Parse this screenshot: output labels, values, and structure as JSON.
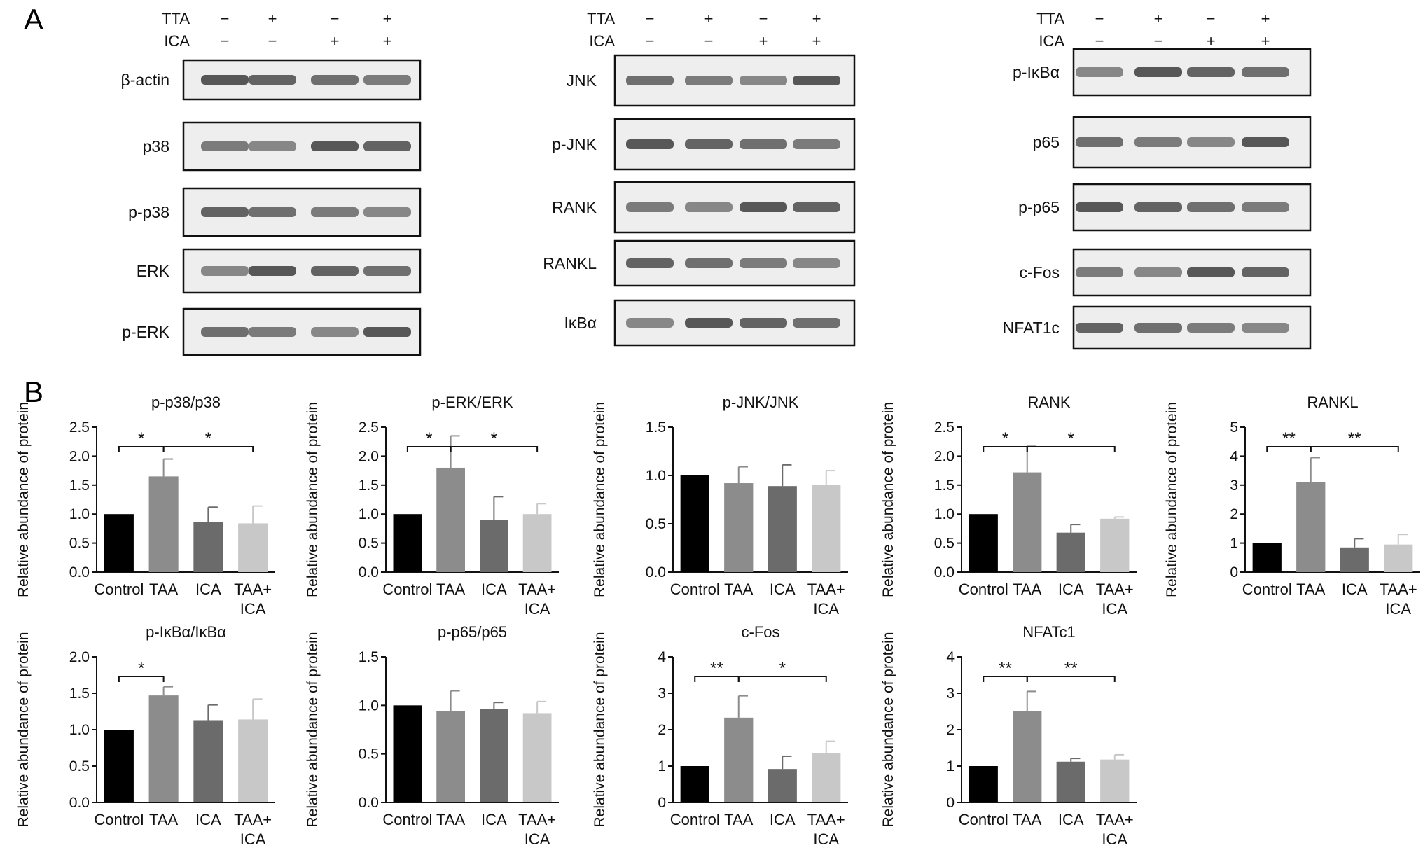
{
  "panel_labels": {
    "a": "A",
    "b": "B"
  },
  "western_blot": {
    "treatment_labels": [
      "TTA",
      "ICA"
    ],
    "lanes": [
      {
        "TTA": "−",
        "ICA": "−"
      },
      {
        "TTA": "+",
        "ICA": "−"
      },
      {
        "TTA": "−",
        "ICA": "+"
      },
      {
        "TTA": "+",
        "ICA": "+"
      }
    ],
    "columns": [
      {
        "blots": [
          "β-actin",
          "p38",
          "p-p38",
          "ERK",
          "p-ERK"
        ]
      },
      {
        "blots": [
          "JNK",
          "p-JNK",
          "RANK",
          "RANKL",
          "IκBα"
        ]
      },
      {
        "blots": [
          "p-IκBα",
          "p65",
          "p-p65",
          "c-Fos",
          "NFAT1c"
        ]
      }
    ]
  },
  "chart_data": [
    {
      "type": "bar",
      "title": "p-p38/p38",
      "ylabel": "Relative abundance of protein",
      "categories": [
        "Control",
        "TAA",
        "ICA",
        "TAA+ ICA"
      ],
      "values": [
        1.0,
        1.65,
        0.86,
        0.84
      ],
      "errors": [
        0,
        0.3,
        0.26,
        0.3
      ],
      "ylim": [
        0,
        2.5
      ],
      "yticks": [
        "0.0",
        "0.5",
        "1.0",
        "1.5",
        "2.0",
        "2.5"
      ],
      "colors": [
        "#000000",
        "#8c8c8c",
        "#6b6b6b",
        "#c8c8c8"
      ],
      "significance": [
        {
          "from": 0,
          "to": 1,
          "label": "*"
        },
        {
          "from": 1,
          "to": 3,
          "label": "*"
        }
      ]
    },
    {
      "type": "bar",
      "title": "p-ERK/ERK",
      "ylabel": "Relative abundance of protein",
      "categories": [
        "Control",
        "TAA",
        "ICA",
        "TAA+ ICA"
      ],
      "values": [
        1.0,
        1.8,
        0.9,
        1.0
      ],
      "errors": [
        0,
        0.55,
        0.4,
        0.18
      ],
      "ylim": [
        0,
        2.5
      ],
      "yticks": [
        "0.0",
        "0.5",
        "1.0",
        "1.5",
        "2.0",
        "2.5"
      ],
      "colors": [
        "#000000",
        "#8c8c8c",
        "#6b6b6b",
        "#c8c8c8"
      ],
      "significance": [
        {
          "from": 0,
          "to": 1,
          "label": "*"
        },
        {
          "from": 1,
          "to": 3,
          "label": "*"
        }
      ]
    },
    {
      "type": "bar",
      "title": "p-JNK/JNK",
      "ylabel": "Relative abundance of protein",
      "categories": [
        "Control",
        "TAA",
        "ICA",
        "TAA+ ICA"
      ],
      "values": [
        1.0,
        0.92,
        0.89,
        0.9
      ],
      "errors": [
        0,
        0.17,
        0.22,
        0.15
      ],
      "ylim": [
        0,
        1.5
      ],
      "yticks": [
        "0.0",
        "0.5",
        "1.0",
        "1.5"
      ],
      "colors": [
        "#000000",
        "#8c8c8c",
        "#6b6b6b",
        "#c8c8c8"
      ],
      "significance": []
    },
    {
      "type": "bar",
      "title": "RANK",
      "ylabel": "Relative abundance of protein",
      "categories": [
        "Control",
        "TAA",
        "ICA",
        "TAA+ ICA"
      ],
      "values": [
        1.0,
        1.72,
        0.68,
        0.92
      ],
      "errors": [
        0,
        0.45,
        0.14,
        0.03
      ],
      "ylim": [
        0,
        2.5
      ],
      "yticks": [
        "0.0",
        "0.5",
        "1.0",
        "1.5",
        "2.0",
        "2.5"
      ],
      "colors": [
        "#000000",
        "#8c8c8c",
        "#6b6b6b",
        "#c8c8c8"
      ],
      "significance": [
        {
          "from": 0,
          "to": 1,
          "label": "*"
        },
        {
          "from": 1,
          "to": 3,
          "label": "*"
        }
      ]
    },
    {
      "type": "bar",
      "title": "RANKL",
      "ylabel": "Relative abundance of protein",
      "categories": [
        "Control",
        "TAA",
        "ICA",
        "TAA+ ICA"
      ],
      "values": [
        1.0,
        3.1,
        0.85,
        0.95
      ],
      "errors": [
        0,
        0.85,
        0.3,
        0.35
      ],
      "ylim": [
        0,
        5
      ],
      "yticks": [
        "0",
        "1",
        "2",
        "3",
        "4",
        "5"
      ],
      "colors": [
        "#000000",
        "#8c8c8c",
        "#6b6b6b",
        "#c8c8c8"
      ],
      "significance": [
        {
          "from": 0,
          "to": 1,
          "label": "**"
        },
        {
          "from": 1,
          "to": 3,
          "label": "**"
        }
      ]
    },
    {
      "type": "bar",
      "title": "p-IκBα/IκBα",
      "ylabel": "Relative abundance of protein",
      "categories": [
        "Control",
        "TAA",
        "ICA",
        "TAA+ ICA"
      ],
      "values": [
        1.0,
        1.47,
        1.13,
        1.14
      ],
      "errors": [
        0,
        0.12,
        0.21,
        0.28
      ],
      "ylim": [
        0,
        2.0
      ],
      "yticks": [
        "0.0",
        "0.5",
        "1.0",
        "1.5",
        "2.0"
      ],
      "colors": [
        "#000000",
        "#8c8c8c",
        "#6b6b6b",
        "#c8c8c8"
      ],
      "significance": [
        {
          "from": 0,
          "to": 1,
          "label": "*"
        }
      ]
    },
    {
      "type": "bar",
      "title": "p-p65/p65",
      "ylabel": "Relative abundance of protein",
      "categories": [
        "Control",
        "TAA",
        "ICA",
        "TAA+ ICA"
      ],
      "values": [
        1.0,
        0.94,
        0.96,
        0.92
      ],
      "errors": [
        0,
        0.21,
        0.07,
        0.12
      ],
      "ylim": [
        0,
        1.5
      ],
      "yticks": [
        "0.0",
        "0.5",
        "1.0",
        "1.5"
      ],
      "colors": [
        "#000000",
        "#8c8c8c",
        "#6b6b6b",
        "#c8c8c8"
      ],
      "significance": []
    },
    {
      "type": "bar",
      "title": "c-Fos",
      "ylabel": "Relative abundance of protein",
      "categories": [
        "Control",
        "TAA",
        "ICA",
        "TAA+ ICA"
      ],
      "values": [
        1.0,
        2.33,
        0.92,
        1.35
      ],
      "errors": [
        0,
        0.6,
        0.35,
        0.33
      ],
      "ylim": [
        0,
        4
      ],
      "yticks": [
        "0",
        "1",
        "2",
        "3",
        "4"
      ],
      "colors": [
        "#000000",
        "#8c8c8c",
        "#6b6b6b",
        "#c8c8c8"
      ],
      "significance": [
        {
          "from": 0,
          "to": 1,
          "label": "**"
        },
        {
          "from": 1,
          "to": 3,
          "label": "*"
        }
      ]
    },
    {
      "type": "bar",
      "title": "NFATc1",
      "ylabel": "Relative abundance of protein",
      "categories": [
        "Control",
        "TAA",
        "ICA",
        "TAA+ ICA"
      ],
      "values": [
        1.0,
        2.5,
        1.12,
        1.18
      ],
      "errors": [
        0,
        0.55,
        0.09,
        0.13
      ],
      "ylim": [
        0,
        4
      ],
      "yticks": [
        "0",
        "1",
        "2",
        "3",
        "4"
      ],
      "colors": [
        "#000000",
        "#8c8c8c",
        "#6b6b6b",
        "#c8c8c8"
      ],
      "significance": [
        {
          "from": 0,
          "to": 1,
          "label": "**"
        },
        {
          "from": 1,
          "to": 3,
          "label": "**"
        }
      ]
    }
  ]
}
